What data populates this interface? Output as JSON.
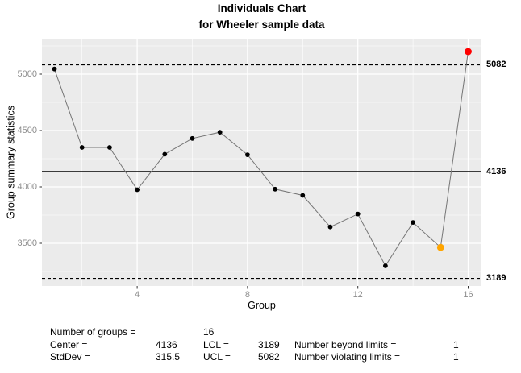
{
  "title": {
    "line1": "Individuals Chart",
    "line2": "for Wheeler sample data"
  },
  "chart_data": {
    "type": "line",
    "title": "Individuals Chart",
    "subtitle": "for Wheeler sample data",
    "xlabel": "Group",
    "ylabel": "Group summary statistics",
    "x": [
      1,
      2,
      3,
      4,
      5,
      6,
      7,
      8,
      9,
      10,
      11,
      12,
      13,
      14,
      15,
      16
    ],
    "values": [
      5045,
      4350,
      4350,
      3975,
      4290,
      4430,
      4485,
      4285,
      3980,
      3925,
      3645,
      3760,
      3300,
      3685,
      3463,
      5200
    ],
    "center": 4136,
    "lcl": 3189,
    "ucl": 5082,
    "stdev": 315.5,
    "x_ticks": [
      4,
      8,
      12,
      16
    ],
    "x_minor_ticks": [
      2,
      6,
      10,
      14
    ],
    "y_ticks": [
      3500,
      4000,
      4500,
      5000
    ],
    "y_minor_ticks": [
      3250,
      3750,
      4250,
      4750,
      5250
    ],
    "xlim": [
      0.55,
      16.5
    ],
    "ylim": [
      3120,
      5315
    ],
    "grid": true,
    "legend": "none",
    "beyond_limits_indices": [
      16
    ],
    "violating_runs_indices": [
      15
    ]
  },
  "limit_labels": {
    "ucl": "5082",
    "center": "4136",
    "lcl": "3189"
  },
  "stats": {
    "rows": [
      {
        "cells": [
          {
            "col": "a",
            "text": "Number of groups ="
          },
          {
            "col": "c",
            "text": "16"
          }
        ]
      },
      {
        "cells": [
          {
            "col": "a",
            "text": "Center ="
          },
          {
            "col": "b",
            "text": "4136"
          },
          {
            "col": "c",
            "text": "LCL ="
          },
          {
            "col": "d",
            "text": "3189"
          },
          {
            "col": "e",
            "text": "Number beyond limits ="
          },
          {
            "col": "f",
            "text": "1"
          }
        ]
      },
      {
        "cells": [
          {
            "col": "a",
            "text": "StdDev ="
          },
          {
            "col": "b",
            "text": "315.5"
          },
          {
            "col": "c",
            "text": "UCL ="
          },
          {
            "col": "d",
            "text": "5082"
          },
          {
            "col": "e",
            "text": "Number violating limits ="
          },
          {
            "col": "f",
            "text": "1"
          }
        ]
      }
    ]
  },
  "colors": {
    "panel_bg": "#EBEBEB",
    "gridline": "#FFFFFF",
    "series_line": "#757575",
    "point": "#000000",
    "beyond_limits": "#FF0000",
    "violating_runs": "#FFA500",
    "limit_line": "#000000",
    "axis_text": "#8C8C8C",
    "tick_mark": "#333333",
    "text": "#000000"
  }
}
